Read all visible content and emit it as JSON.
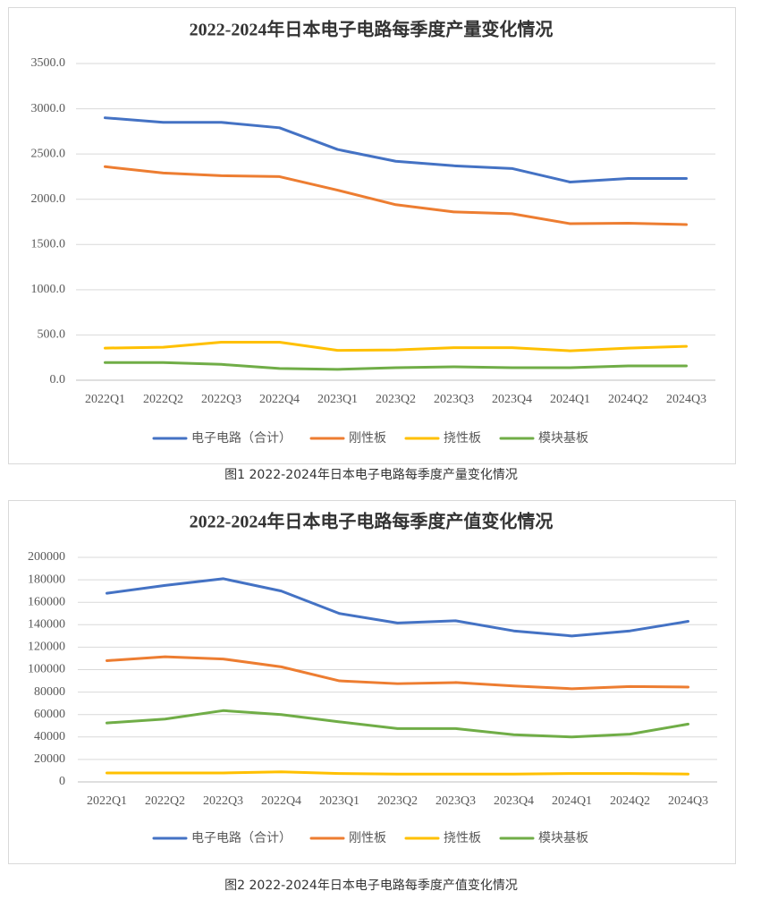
{
  "chart_data": [
    {
      "type": "line",
      "title": "2022-2024年日本电子电路每季度产量变化情况",
      "caption": "图1 2022-2024年日本电子电路每季度产量变化情况",
      "categories": [
        "2022Q1",
        "2022Q2",
        "2022Q3",
        "2022Q4",
        "2023Q1",
        "2023Q2",
        "2023Q3",
        "2023Q4",
        "2024Q1",
        "2024Q2",
        "2024Q3"
      ],
      "series": [
        {
          "name": "电子电路（合计）",
          "color": "#4472c4",
          "values": [
            2900,
            2850,
            2850,
            2790,
            2550,
            2420,
            2370,
            2340,
            2190,
            2230,
            2230
          ]
        },
        {
          "name": "刚性板",
          "color": "#ed7d31",
          "values": [
            2360,
            2290,
            2260,
            2250,
            2100,
            1940,
            1860,
            1840,
            1730,
            1735,
            1720
          ]
        },
        {
          "name": "挠性板",
          "color": "#ffc000",
          "values": [
            355,
            365,
            420,
            420,
            330,
            335,
            360,
            360,
            325,
            355,
            375
          ]
        },
        {
          "name": "模块基板",
          "color": "#70ad47",
          "values": [
            195,
            195,
            175,
            130,
            120,
            138,
            148,
            138,
            138,
            158,
            158
          ]
        }
      ],
      "ylim": [
        0,
        3500
      ],
      "yticks": [
        {
          "value": 0,
          "label": "0.0"
        },
        {
          "value": 500,
          "label": "500.0"
        },
        {
          "value": 1000,
          "label": "1000.0"
        },
        {
          "value": 1500,
          "label": "1500.0"
        },
        {
          "value": 2000,
          "label": "2000.0"
        },
        {
          "value": 2500,
          "label": "2500.0"
        },
        {
          "value": 3000,
          "label": "3000.0"
        },
        {
          "value": 3500,
          "label": "3500.0"
        }
      ],
      "grid": true,
      "legend": "bottom"
    },
    {
      "type": "line",
      "title": "2022-2024年日本电子电路每季度产值变化情况",
      "caption": "图2 2022-2024年日本电子电路每季度产值变化情况",
      "categories": [
        "2022Q1",
        "2022Q2",
        "2022Q3",
        "2022Q4",
        "2023Q1",
        "2023Q2",
        "2023Q3",
        "2023Q4",
        "2024Q1",
        "2024Q2",
        "2024Q3"
      ],
      "series": [
        {
          "name": "电子电路（合计）",
          "color": "#4472c4",
          "values": [
            168000,
            175000,
            181000,
            170000,
            150000,
            141500,
            143500,
            134500,
            130000,
            134500,
            143000
          ]
        },
        {
          "name": "刚性板",
          "color": "#ed7d31",
          "values": [
            108000,
            111500,
            109500,
            102500,
            90000,
            87500,
            88500,
            85500,
            83000,
            85000,
            84500
          ]
        },
        {
          "name": "挠性板",
          "color": "#ffc000",
          "values": [
            8000,
            8000,
            8000,
            9000,
            7500,
            7000,
            7000,
            7000,
            7500,
            7500,
            7000
          ]
        },
        {
          "name": "模块基板",
          "color": "#70ad47",
          "values": [
            52500,
            56000,
            63500,
            60000,
            53500,
            47500,
            47500,
            42000,
            40000,
            42500,
            51500
          ]
        }
      ],
      "ylim": [
        0,
        200000
      ],
      "yticks": [
        0,
        20000,
        40000,
        60000,
        80000,
        100000,
        120000,
        140000,
        160000,
        180000,
        200000
      ],
      "grid": true,
      "legend": "bottom"
    }
  ]
}
